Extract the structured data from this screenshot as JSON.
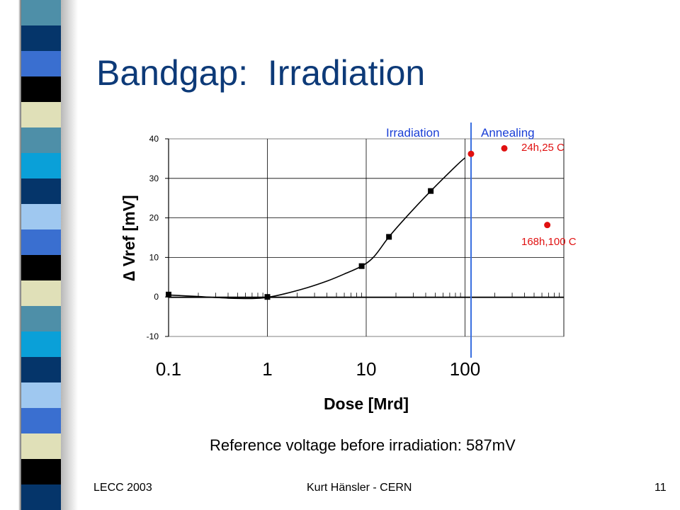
{
  "slide": {
    "title": "Bandgap:  Irradiation",
    "note": "Reference voltage before irradiation: 587mV",
    "footer_left": "LECC 2003",
    "footer_center": "Kurt Hänsler - CERN",
    "footer_right": "11"
  },
  "sidebar": {
    "stripe_colors": [
      "#4e8fa8",
      "#05356a",
      "#3a6fd0",
      "#000000",
      "#e0e0b8",
      "#4e8fa8",
      "#0aa0d8",
      "#05356a",
      "#9fc8f0",
      "#3a6fd0",
      "#000000",
      "#e0e0b8",
      "#4e8fa8",
      "#0aa0d8",
      "#05356a",
      "#9fc8f0",
      "#3a6fd0",
      "#e0e0b8",
      "#000000",
      "#05356a"
    ]
  },
  "chart_data": {
    "type": "scatter",
    "xscale": "log",
    "xlabel": "Dose [Mrd]",
    "ylabel": "∆ Vref [mV]",
    "ylim": [
      -10,
      40
    ],
    "yticks": [
      -10,
      0,
      10,
      20,
      30,
      40
    ],
    "xtick_labels": [
      {
        "value": 0.1,
        "label": "0.1"
      },
      {
        "value": 1,
        "label": "1"
      },
      {
        "value": 10,
        "label": "10"
      },
      {
        "value": 100,
        "label": "100"
      }
    ],
    "grid": true,
    "regions": [
      {
        "label": "Irradiation"
      },
      {
        "label": "Annealing"
      }
    ],
    "series": [
      {
        "marker": "square",
        "color": "#000000",
        "x": [
          0.1,
          1,
          9,
          17,
          45
        ],
        "y": [
          0.6,
          0,
          7.8,
          15.2,
          26.8
        ]
      },
      {
        "marker": "circle",
        "color": "#e01010",
        "x": [
          115,
          250,
          680
        ],
        "y": [
          36.2,
          37.6,
          18.2
        ]
      }
    ],
    "fit_curve": {
      "x": [
        0.1,
        0.2,
        0.4,
        0.7,
        1,
        1.5,
        2.5,
        4,
        6,
        9,
        12,
        17,
        25,
        45,
        80,
        100
      ],
      "y": [
        0.5,
        0.1,
        -0.3,
        -0.4,
        -0.1,
        0.8,
        2.3,
        4,
        5.8,
        7.8,
        10.2,
        15.2,
        20,
        26.8,
        33,
        35.2
      ]
    },
    "annotations": [
      {
        "text": "24h,25 C",
        "target": {
          "x": 250,
          "y": 37.6
        }
      },
      {
        "text": "168h,100 C",
        "target": {
          "x": 680,
          "y": 18.2
        }
      }
    ]
  }
}
